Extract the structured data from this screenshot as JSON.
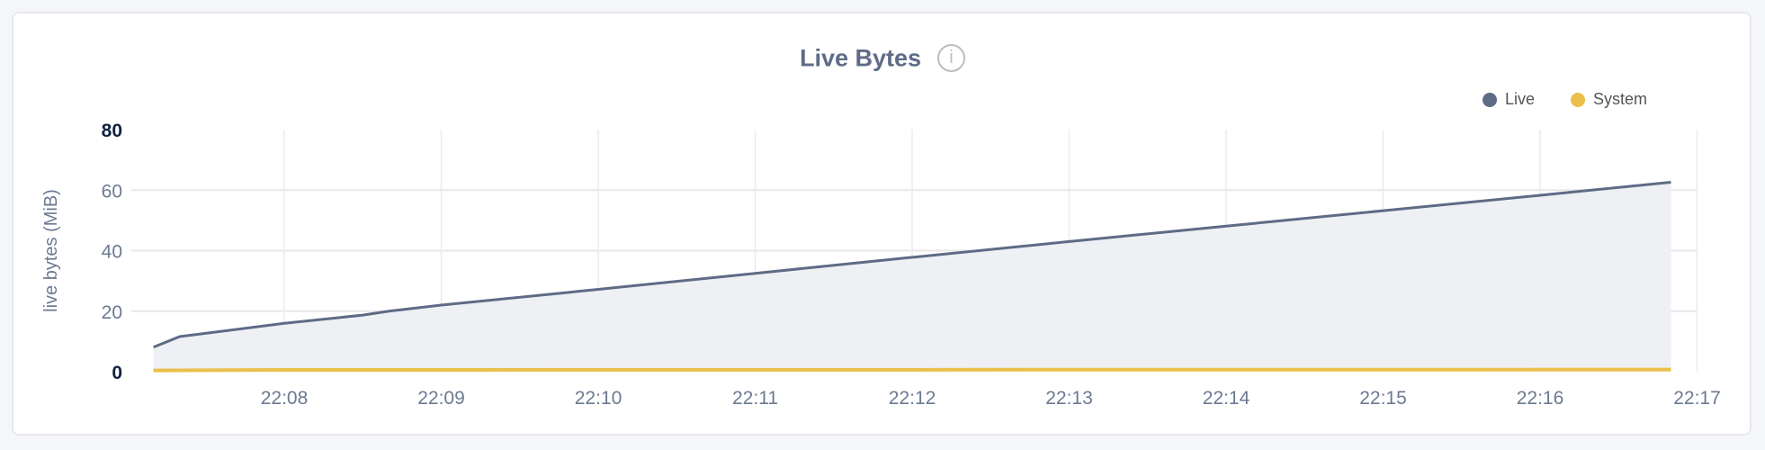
{
  "chart_data": {
    "type": "area",
    "title": "Live Bytes",
    "ylabel": "live bytes (MiB)",
    "xlabel": "",
    "ylim": [
      0,
      80
    ],
    "yticks": [
      "0",
      "20",
      "40",
      "60",
      "80"
    ],
    "xticks": [
      "22:08",
      "22:09",
      "22:10",
      "22:11",
      "22:12",
      "22:13",
      "22:14",
      "22:15",
      "22:16",
      "22:17"
    ],
    "xlim": [
      "22:07:10",
      "22:17:00"
    ],
    "grid": true,
    "legend_placement": "top-right",
    "series": [
      {
        "name": "Live",
        "color": "#5e6b86",
        "fill": "#eff0f4",
        "x": [
          "22:07:10",
          "22:07:20",
          "22:08:00",
          "22:08:30",
          "22:08:40",
          "22:09:00",
          "22:10:00",
          "22:11:00",
          "22:12:00",
          "22:13:00",
          "22:14:00",
          "22:15:00",
          "22:16:00",
          "22:16:50"
        ],
        "values": [
          8.1,
          11.6,
          16.0,
          18.7,
          20.0,
          22.0,
          27.2,
          32.5,
          37.8,
          43.0,
          48.1,
          53.2,
          58.3,
          62.6
        ]
      },
      {
        "name": "System",
        "color": "#ebbf4a",
        "x": [
          "22:07:10",
          "22:08:00",
          "22:16:50"
        ],
        "values": [
          0.4,
          0.6,
          0.7
        ]
      }
    ]
  },
  "info_icon": "info-circle-icon"
}
